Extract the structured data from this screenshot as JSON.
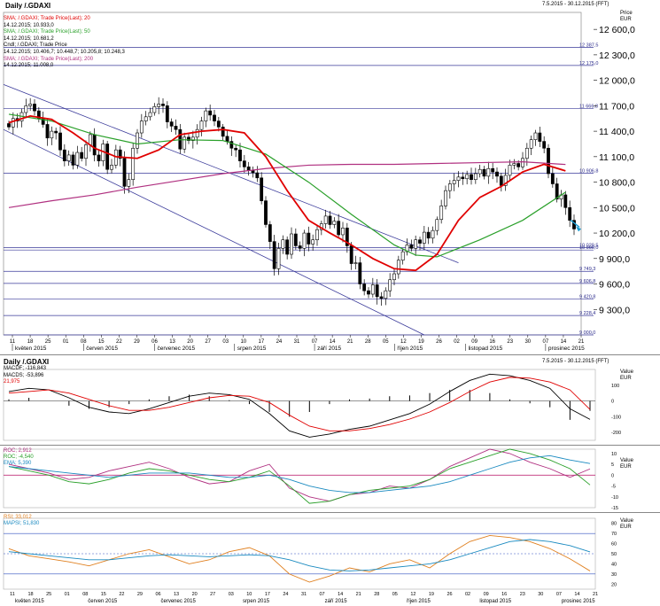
{
  "panels": {
    "main": {
      "title": "Daily /.GDAXI",
      "date_range": "7.5.2015 - 30.12.2015 (FFT)",
      "price_label": "Price",
      "currency": "EUR",
      "legend": [
        {
          "label": "SMA; /.GDAXI; Trade Price(Last); 20",
          "color": "#e00000"
        },
        {
          "label": "14.12.2015; 10.933,0",
          "color": "#000000"
        },
        {
          "label": "SMA; /.GDAXI; Trade Price(Last); 50",
          "color": "#2aa02a"
        },
        {
          "label": "14.12.2015; 10.681,2",
          "color": "#000000"
        },
        {
          "label": "Cndl; /.GDAXI; Trade Price",
          "color": "#000000"
        },
        {
          "label": "14.12.2015; 10.406,7; 10.448,7; 10.205,8; 10.248,3",
          "color": "#000000"
        },
        {
          "label": "SMA; /.GDAXI; Trade Price(Last); 200",
          "color": "#b03080"
        },
        {
          "label": "14.12.2015; 11.008,0",
          "color": "#000000"
        }
      ]
    },
    "macd": {
      "title": "Daily /.GDAXI",
      "date_range": "7.5.2015 - 30.12.2015 (FFT)",
      "legend": [
        {
          "label": "MACDF; -116,843",
          "color": "#000000"
        },
        {
          "label": "MACDS; -53,896",
          "color": "#000000"
        },
        {
          "label": "21,975",
          "color": "#e00000"
        }
      ],
      "value_label": "Value",
      "currency": "EUR",
      "ticks": [
        "100",
        "0",
        "-100",
        "-200"
      ]
    },
    "roc": {
      "legend": [
        {
          "label": "ROC; 2,912",
          "color": "#b03080"
        },
        {
          "label": "ROC; -4,540",
          "color": "#2aa02a"
        },
        {
          "label": "EMA; 5,390",
          "color": "#1a8ac0"
        }
      ],
      "value_label": "Value",
      "currency": "EUR",
      "ticks": [
        "10",
        "5",
        "0",
        "-5",
        "-10",
        "-15"
      ]
    },
    "rsi": {
      "legend": [
        {
          "label": "RSI; 33,012",
          "color": "#e08020"
        },
        {
          "label": "MAPSI; 51,830",
          "color": "#1a8ac0"
        }
      ],
      "value_label": "Value",
      "currency": "EUR",
      "ticks": [
        "80",
        "70",
        "60",
        "50",
        "40",
        "30",
        "20"
      ]
    }
  },
  "chart_data": [
    {
      "type": "line",
      "title": "Daily /.GDAXI",
      "ylabel": "Price EUR",
      "ylim": [
        9000,
        12800
      ],
      "y_ticks": [
        "12 600,0",
        "12 300,0",
        "12 000,0",
        "11 700,0",
        "11 400,0",
        "11 100,0",
        "10 800,0",
        "10 500,0",
        "10 200,0",
        "9 900,0",
        "9 600,0",
        "9 300,0"
      ],
      "y_tick_values": [
        12600,
        12300,
        12000,
        11700,
        11400,
        11100,
        10800,
        10500,
        10200,
        9900,
        9600,
        9300
      ],
      "x_ticks": [
        "11",
        "18",
        "25",
        "01",
        "08",
        "15",
        "22",
        "29",
        "06",
        "13",
        "20",
        "27",
        "03",
        "10",
        "17",
        "24",
        "31",
        "07",
        "14",
        "21",
        "28",
        "05",
        "12",
        "19",
        "26",
        "02",
        "09",
        "16",
        "23",
        "30",
        "07",
        "14",
        "21"
      ],
      "months": [
        "květen 2015",
        "červen 2015",
        "červenec 2015",
        "srpen 2015",
        "září 2015",
        "říjen 2015",
        "listopad 2015",
        "prosinec 2015"
      ],
      "month_positions": [
        0,
        4,
        8,
        12.5,
        17,
        21.5,
        25.5,
        30
      ],
      "horizontal_levels": [
        {
          "label": "12 387,5",
          "value": 12387.5
        },
        {
          "label": "12 175,0",
          "value": 12175.0
        },
        {
          "label": "11 666,8",
          "value": 11666.8
        },
        {
          "label": "10 906,8",
          "value": 10906.8
        },
        {
          "label": "10 029,5",
          "value": 10029.5
        },
        {
          "label": "10 000,0",
          "value": 10000.0
        },
        {
          "label": "9 749,3",
          "value": 9749.3
        },
        {
          "label": "9 606,8",
          "value": 9606.8
        },
        {
          "label": "9 420,8",
          "value": 9420.8
        },
        {
          "label": "9 228,4",
          "value": 9228.4
        },
        {
          "label": "9 000,0",
          "value": 9000.0
        }
      ],
      "closes": [
        11450,
        11550,
        11520,
        11620,
        11700,
        11720,
        11640,
        11550,
        11480,
        11320,
        11400,
        11380,
        11180,
        11050,
        11120,
        11000,
        11150,
        11080,
        11240,
        11360,
        11120,
        11050,
        11250,
        10950,
        11000,
        11180,
        11080,
        10750,
        10830,
        11200,
        11380,
        11520,
        11570,
        11620,
        11690,
        11720,
        11700,
        11510,
        11460,
        11420,
        11190,
        11330,
        11290,
        11330,
        11420,
        11520,
        11640,
        11590,
        11520,
        11450,
        11340,
        11280,
        11200,
        11180,
        11050,
        10980,
        10940,
        10910,
        10850,
        10580,
        10300,
        10100,
        9780,
        10020,
        10120,
        9950,
        10190,
        10050,
        10020,
        10200,
        10070,
        10120,
        10240,
        10310,
        10400,
        10300,
        10340,
        10180,
        10260,
        10050,
        9840,
        9850,
        9600,
        9520,
        9480,
        9590,
        9450,
        9430,
        9520,
        9650,
        9720,
        9880,
        9980,
        10060,
        10020,
        10120,
        10080,
        10210,
        10140,
        10230,
        10360,
        10520,
        10700,
        10780,
        10820,
        10860,
        10840,
        10890,
        10830,
        10900,
        10950,
        10870,
        10960,
        10920,
        10870,
        10760,
        10880,
        11000,
        11020,
        10980,
        11080,
        11200,
        11300,
        11380,
        11280,
        11200,
        10900,
        10780,
        10600,
        10650,
        10500,
        10350,
        10248.3
      ],
      "sma20_points_x": [
        0,
        5,
        10,
        15,
        20,
        25,
        30,
        35,
        40,
        45,
        50,
        55,
        60,
        65,
        70,
        75,
        80,
        85,
        90,
        95,
        100,
        105,
        110,
        115,
        120,
        125,
        130
      ],
      "sma20": [
        11500,
        11580,
        11540,
        11380,
        11200,
        11100,
        11080,
        11180,
        11360,
        11400,
        11420,
        11380,
        11100,
        10700,
        10350,
        10200,
        10060,
        9900,
        9780,
        9760,
        9950,
        10350,
        10620,
        10750,
        10920,
        11010,
        10933
      ],
      "sma50_points_x": [
        0,
        10,
        20,
        30,
        40,
        50,
        60,
        70,
        80,
        90,
        95,
        100,
        110,
        120,
        130
      ],
      "sma50": [
        11600,
        11520,
        11360,
        11250,
        11300,
        11290,
        11130,
        10800,
        10420,
        10060,
        9940,
        9920,
        10120,
        10350,
        10681.2
      ],
      "sma200_points_x": [
        0,
        10,
        20,
        30,
        40,
        50,
        60,
        70,
        80,
        90,
        100,
        110,
        120,
        130
      ],
      "sma200": [
        10500,
        10580,
        10650,
        10740,
        10820,
        10900,
        10960,
        11000,
        11010,
        11010,
        11020,
        11030,
        11040,
        11008
      ]
    },
    {
      "type": "line",
      "title": "MACD",
      "series": [
        {
          "name": "MACDF",
          "values": [
            60,
            80,
            70,
            20,
            -40,
            -70,
            -80,
            -50,
            -10,
            30,
            50,
            40,
            10,
            -80,
            -190,
            -230,
            -210,
            -180,
            -160,
            -120,
            -80,
            -20,
            60,
            130,
            170,
            160,
            130,
            80,
            -50,
            -117
          ]
        },
        {
          "name": "MACDS",
          "values": [
            50,
            60,
            70,
            50,
            10,
            -30,
            -60,
            -60,
            -40,
            -10,
            20,
            35,
            30,
            -10,
            -90,
            -160,
            -190,
            -190,
            -175,
            -150,
            -115,
            -70,
            -10,
            60,
            120,
            150,
            145,
            120,
            70,
            -54
          ]
        }
      ],
      "ylim": [
        -250,
        200
      ]
    },
    {
      "type": "line",
      "title": "ROC",
      "series": [
        {
          "name": "ROC",
          "values": [
            5,
            3,
            1,
            -2,
            -1,
            2,
            4,
            6,
            3,
            -1,
            -4,
            -3,
            2,
            5,
            -6,
            -10,
            -12,
            -9,
            -8,
            -5,
            -6,
            -2,
            4,
            8,
            12,
            10,
            6,
            3,
            -1,
            2.9
          ]
        },
        {
          "name": "ROC",
          "values": [
            4,
            2,
            0,
            -3,
            -4,
            -2,
            1,
            3,
            2,
            0,
            -2,
            -3,
            -1,
            2,
            -5,
            -13,
            -12,
            -9,
            -7,
            -6,
            -5,
            -2,
            3,
            6,
            9,
            12,
            10,
            7,
            3,
            -4.5
          ]
        },
        {
          "name": "EMA",
          "values": [
            4,
            3,
            2,
            1,
            0,
            -1,
            0,
            1,
            1,
            1,
            0,
            -1,
            -1,
            0,
            -2,
            -5,
            -7,
            -8,
            -8,
            -7,
            -6,
            -5,
            -3,
            0,
            3,
            6,
            8,
            9,
            7,
            5.4
          ]
        }
      ],
      "ylim": [
        -15,
        12
      ]
    },
    {
      "type": "line",
      "title": "RSI",
      "series": [
        {
          "name": "RSI",
          "values": [
            55,
            48,
            45,
            42,
            38,
            44,
            50,
            54,
            47,
            40,
            44,
            52,
            56,
            48,
            30,
            22,
            28,
            36,
            32,
            40,
            44,
            36,
            50,
            62,
            68,
            66,
            62,
            55,
            45,
            33
          ]
        },
        {
          "name": "MAPSI",
          "values": [
            52,
            50,
            48,
            46,
            44,
            44,
            46,
            48,
            49,
            48,
            47,
            48,
            49,
            48,
            44,
            38,
            34,
            33,
            34,
            36,
            38,
            40,
            44,
            50,
            56,
            62,
            64,
            62,
            58,
            51.8
          ]
        }
      ],
      "levels": [
        70,
        50,
        30
      ],
      "ylim": [
        15,
        85
      ]
    }
  ]
}
